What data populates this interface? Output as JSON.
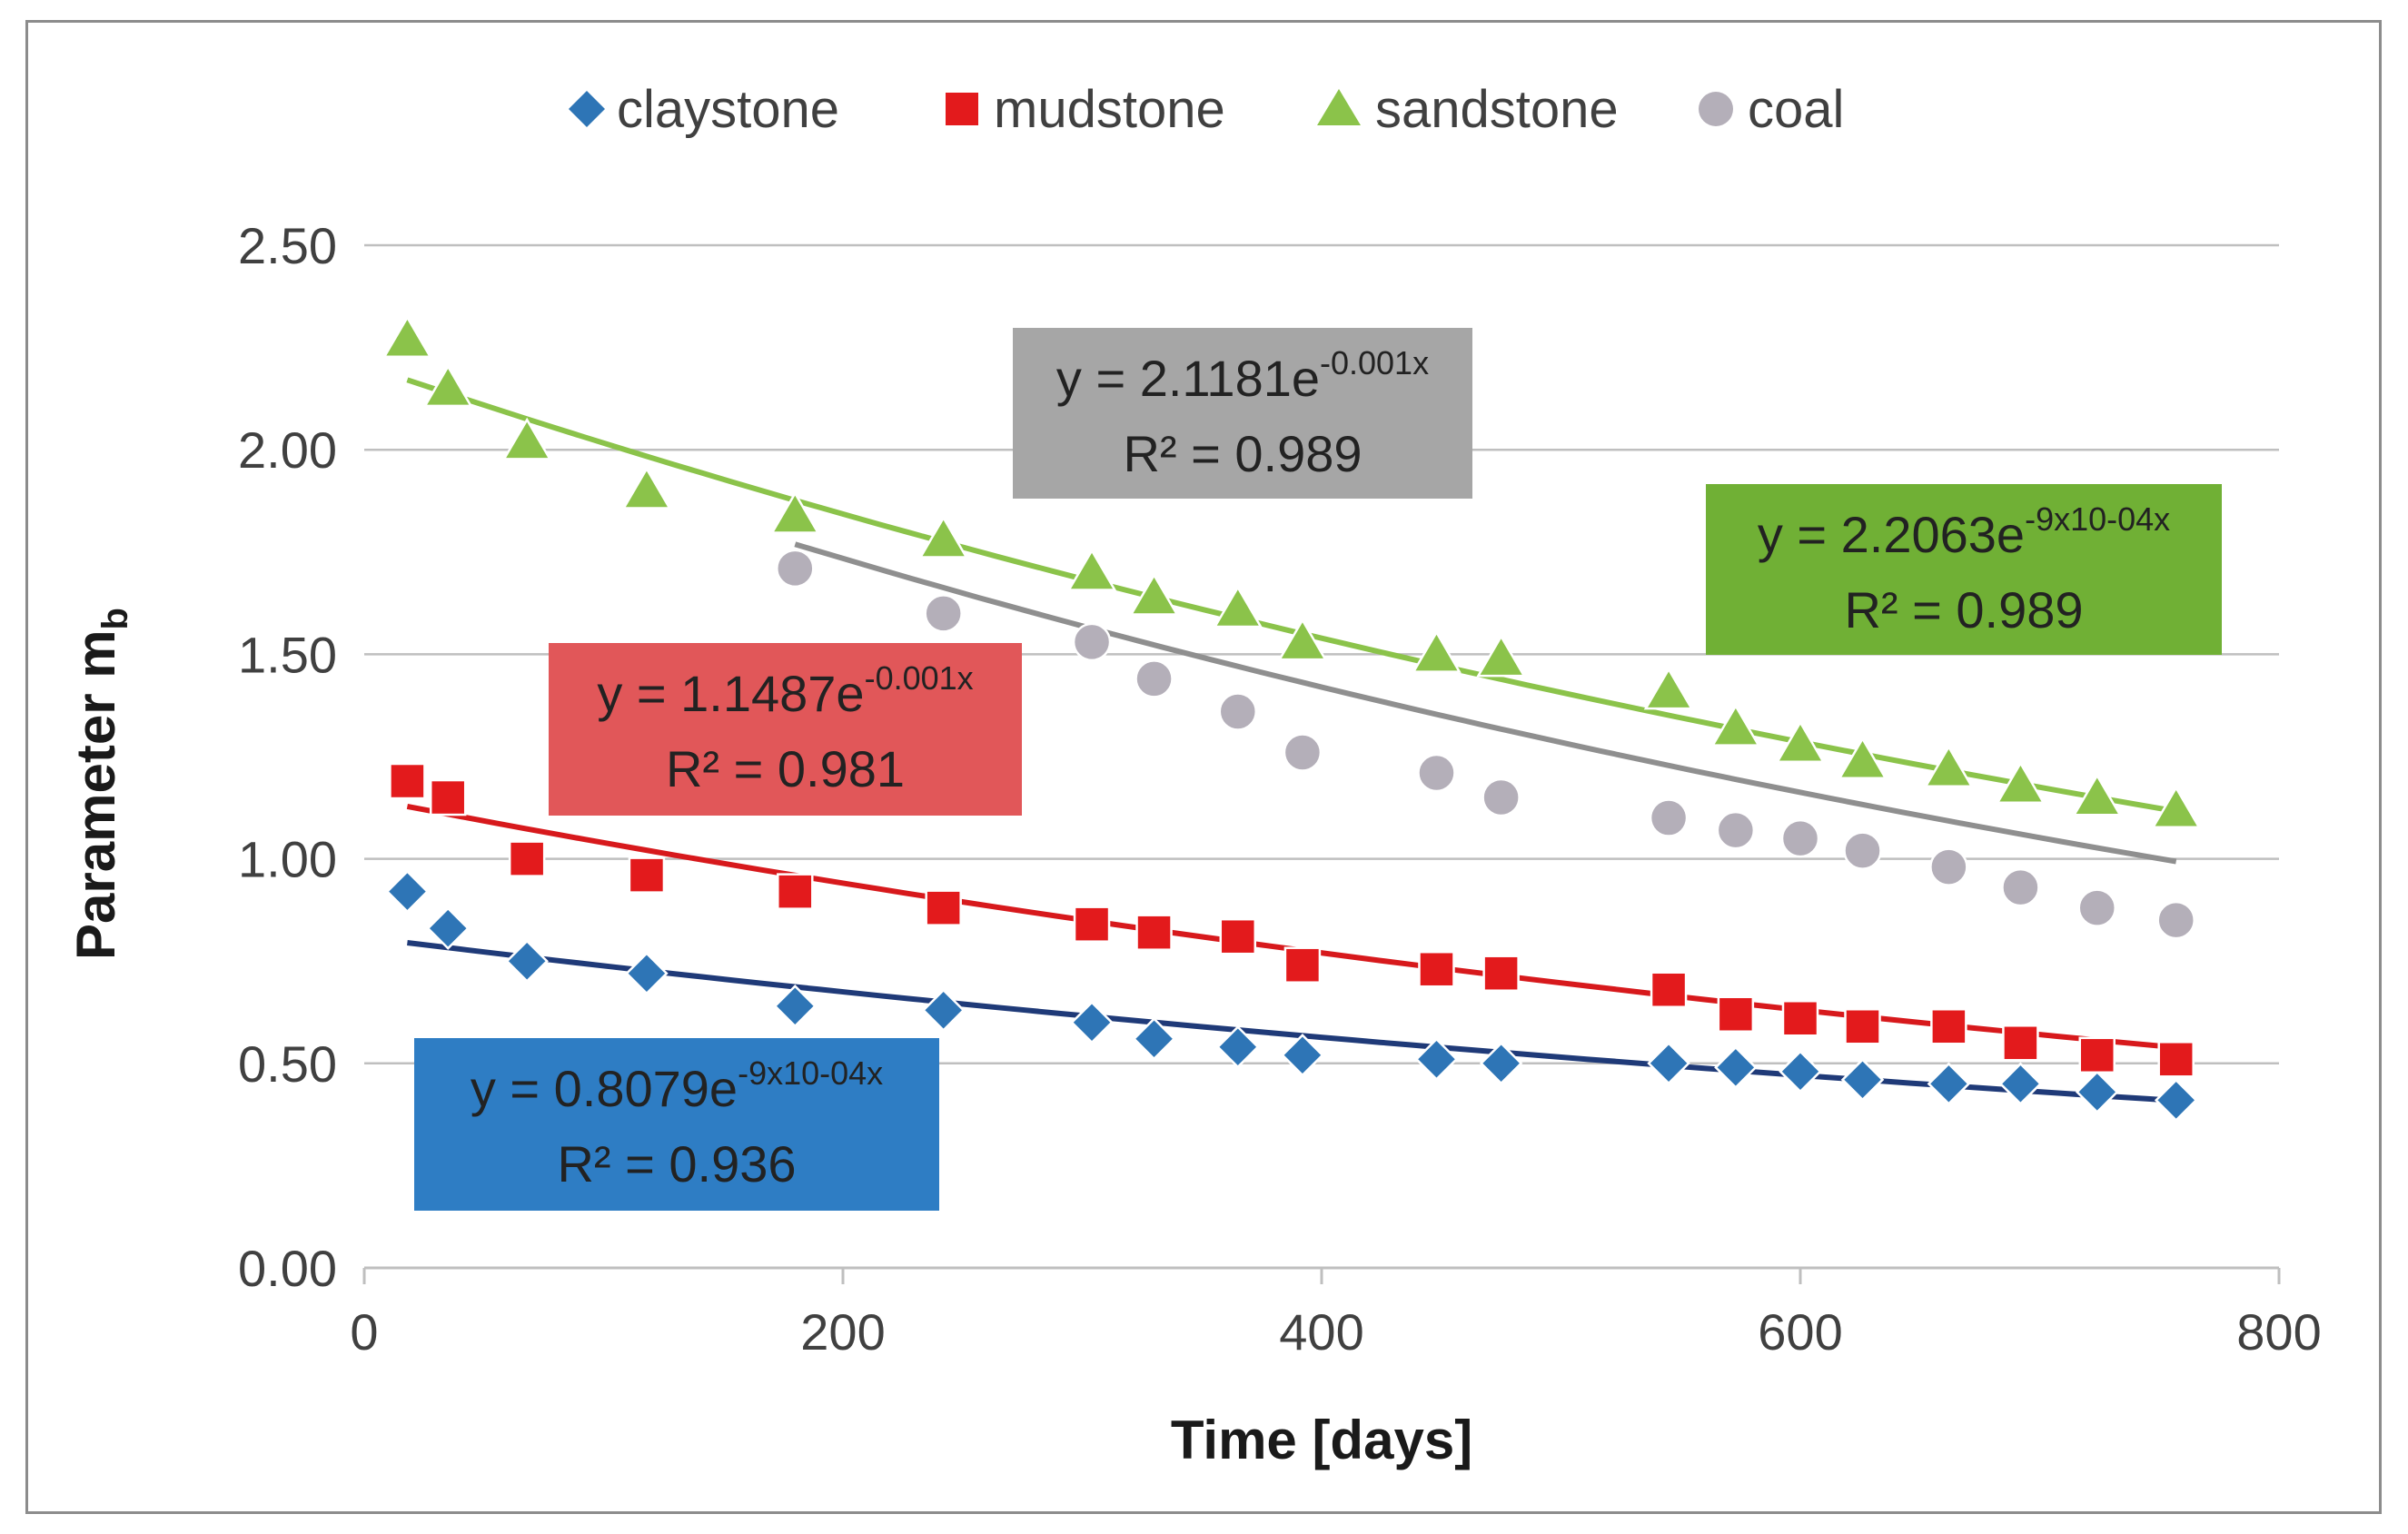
{
  "chart_data": {
    "type": "scatter",
    "title": "",
    "xlabel": "Time [days]",
    "ylabel_main": "Parameter m",
    "ylabel_sub": "b",
    "xlim": [
      0,
      800
    ],
    "ylim": [
      0,
      2.5
    ],
    "x_ticks": [
      0,
      200,
      400,
      600,
      800
    ],
    "x_tick_labels": [
      "0",
      "200",
      "400",
      "600",
      "800"
    ],
    "y_ticks": [
      0,
      0.5,
      1.0,
      1.5,
      2.0,
      2.5
    ],
    "y_tick_labels": [
      "0.00",
      "0.50",
      "1.00",
      "1.50",
      "2.00",
      "2.50"
    ],
    "grid": "horizontal",
    "legend_position": "top",
    "series": [
      {
        "name": "claystone",
        "marker": "diamond",
        "color": "#2e75b6",
        "trend_color": "#1f3a78",
        "x": [
          18,
          35,
          68,
          118,
          180,
          242,
          304,
          330,
          365,
          392,
          448,
          475,
          545,
          573,
          600,
          626,
          662,
          692,
          724,
          757
        ],
        "y": [
          0.92,
          0.83,
          0.75,
          0.72,
          0.64,
          0.63,
          0.6,
          0.56,
          0.54,
          0.52,
          0.51,
          0.5,
          0.5,
          0.49,
          0.48,
          0.46,
          0.45,
          0.45,
          0.43,
          0.41
        ],
        "trend": {
          "a": 0.8079,
          "b": -0.0009
        },
        "equation_main": "y = 0.8079e",
        "equation_exp": "-9x10-04x",
        "r2": "R² = 0.936",
        "box_color": "#2e7dc4"
      },
      {
        "name": "mudstone",
        "marker": "square",
        "color": "#e31a1c",
        "trend_color": "#d7191c",
        "x": [
          18,
          35,
          68,
          118,
          180,
          242,
          304,
          330,
          365,
          392,
          448,
          475,
          545,
          573,
          600,
          626,
          662,
          692,
          724,
          757
        ],
        "y": [
          1.19,
          1.15,
          1.0,
          0.96,
          0.92,
          0.88,
          0.84,
          0.82,
          0.81,
          0.74,
          0.73,
          0.72,
          0.68,
          0.62,
          0.61,
          0.59,
          0.59,
          0.55,
          0.52,
          0.51
        ],
        "trend": {
          "a": 1.1487,
          "b": -0.001
        },
        "equation_main": "y = 1.1487e",
        "equation_exp": "-0.001x",
        "r2": "R² = 0.981",
        "box_color": "#e15759"
      },
      {
        "name": "sandstone",
        "marker": "triangle",
        "color": "#8bc34a",
        "trend_color": "#8bc34a",
        "x": [
          18,
          35,
          68,
          118,
          180,
          242,
          304,
          330,
          365,
          392,
          448,
          475,
          545,
          573,
          600,
          626,
          662,
          692,
          724,
          757
        ],
        "y": [
          2.27,
          2.15,
          2.02,
          1.9,
          1.84,
          1.78,
          1.7,
          1.64,
          1.61,
          1.53,
          1.5,
          1.49,
          1.41,
          1.32,
          1.28,
          1.24,
          1.22,
          1.18,
          1.15,
          1.12
        ],
        "trend": {
          "a": 2.2063,
          "b": -0.0009
        },
        "equation_main": "y = 2.2063e",
        "equation_exp": "-9x10-04x",
        "r2": "R² = 0.989",
        "box_color": "#70b035"
      },
      {
        "name": "coal",
        "marker": "circle",
        "color": "#b4afb9",
        "trend_color": "#8f8f8f",
        "x": [
          180,
          242,
          304,
          330,
          365,
          392,
          448,
          475,
          545,
          573,
          600,
          626,
          662,
          692,
          724,
          757
        ],
        "y": [
          1.71,
          1.6,
          1.53,
          1.44,
          1.36,
          1.26,
          1.21,
          1.15,
          1.1,
          1.07,
          1.05,
          1.02,
          0.98,
          0.93,
          0.88,
          0.85
        ],
        "trend": {
          "a": 2.1181,
          "b": -0.001
        },
        "equation_main": "y = 2.1181e",
        "equation_exp": "-0.001x",
        "r2": "R² = 0.989",
        "box_color": "#a6a6a6"
      }
    ]
  }
}
